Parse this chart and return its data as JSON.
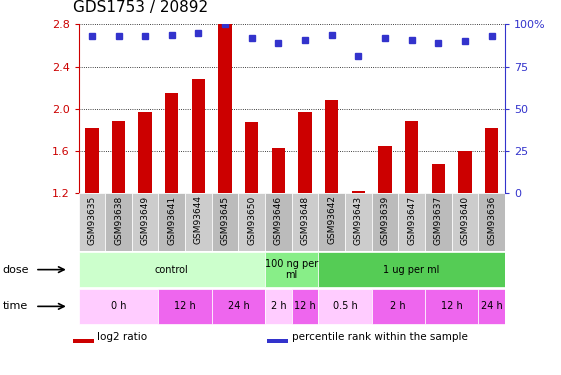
{
  "title": "GDS1753 / 20892",
  "samples": [
    "GSM93635",
    "GSM93638",
    "GSM93649",
    "GSM93641",
    "GSM93644",
    "GSM93645",
    "GSM93650",
    "GSM93646",
    "GSM93648",
    "GSM93642",
    "GSM93643",
    "GSM93639",
    "GSM93647",
    "GSM93637",
    "GSM93640",
    "GSM93636"
  ],
  "log2_ratio": [
    1.82,
    1.88,
    1.97,
    2.15,
    2.28,
    2.8,
    1.87,
    1.63,
    1.97,
    2.08,
    1.22,
    1.65,
    1.88,
    1.48,
    1.6,
    1.82
  ],
  "percentile": [
    93,
    93,
    93,
    94,
    95,
    100,
    92,
    89,
    91,
    94,
    81,
    92,
    91,
    89,
    90,
    93
  ],
  "bar_color": "#cc0000",
  "dot_color": "#3333cc",
  "ylim": [
    1.2,
    2.8
  ],
  "yticks_left": [
    1.2,
    1.6,
    2.0,
    2.4,
    2.8
  ],
  "yticks_right_pct": [
    0,
    25,
    50,
    75,
    100
  ],
  "right_ylabels": [
    "0",
    "25",
    "50",
    "75",
    "100%"
  ],
  "grid_values": [
    1.6,
    2.0,
    2.4,
    2.8
  ],
  "dose_groups": [
    {
      "label": "control",
      "start": 0,
      "end": 7,
      "color": "#ccffcc"
    },
    {
      "label": "100 ng per\nml",
      "start": 7,
      "end": 9,
      "color": "#88ee88"
    },
    {
      "label": "1 ug per ml",
      "start": 9,
      "end": 16,
      "color": "#55cc55"
    }
  ],
  "time_groups": [
    {
      "label": "0 h",
      "start": 0,
      "end": 3,
      "color": "#ffccff"
    },
    {
      "label": "12 h",
      "start": 3,
      "end": 5,
      "color": "#ee66ee"
    },
    {
      "label": "24 h",
      "start": 5,
      "end": 7,
      "color": "#ee66ee"
    },
    {
      "label": "2 h",
      "start": 7,
      "end": 8,
      "color": "#ffccff"
    },
    {
      "label": "12 h",
      "start": 8,
      "end": 9,
      "color": "#ee66ee"
    },
    {
      "label": "0.5 h",
      "start": 9,
      "end": 11,
      "color": "#ffccff"
    },
    {
      "label": "2 h",
      "start": 11,
      "end": 13,
      "color": "#ee66ee"
    },
    {
      "label": "12 h",
      "start": 13,
      "end": 15,
      "color": "#ee66ee"
    },
    {
      "label": "24 h",
      "start": 15,
      "end": 16,
      "color": "#ee66ee"
    }
  ],
  "legend_items": [
    {
      "label": "log2 ratio",
      "color": "#cc0000"
    },
    {
      "label": "percentile rank within the sample",
      "color": "#3333cc"
    }
  ],
  "bar_width": 0.5,
  "label_bg_even": "#cccccc",
  "label_bg_odd": "#bbbbbb",
  "label_fontsize": 6.5,
  "row_fontsize": 8,
  "title_fontsize": 11,
  "axis_fontsize": 8
}
